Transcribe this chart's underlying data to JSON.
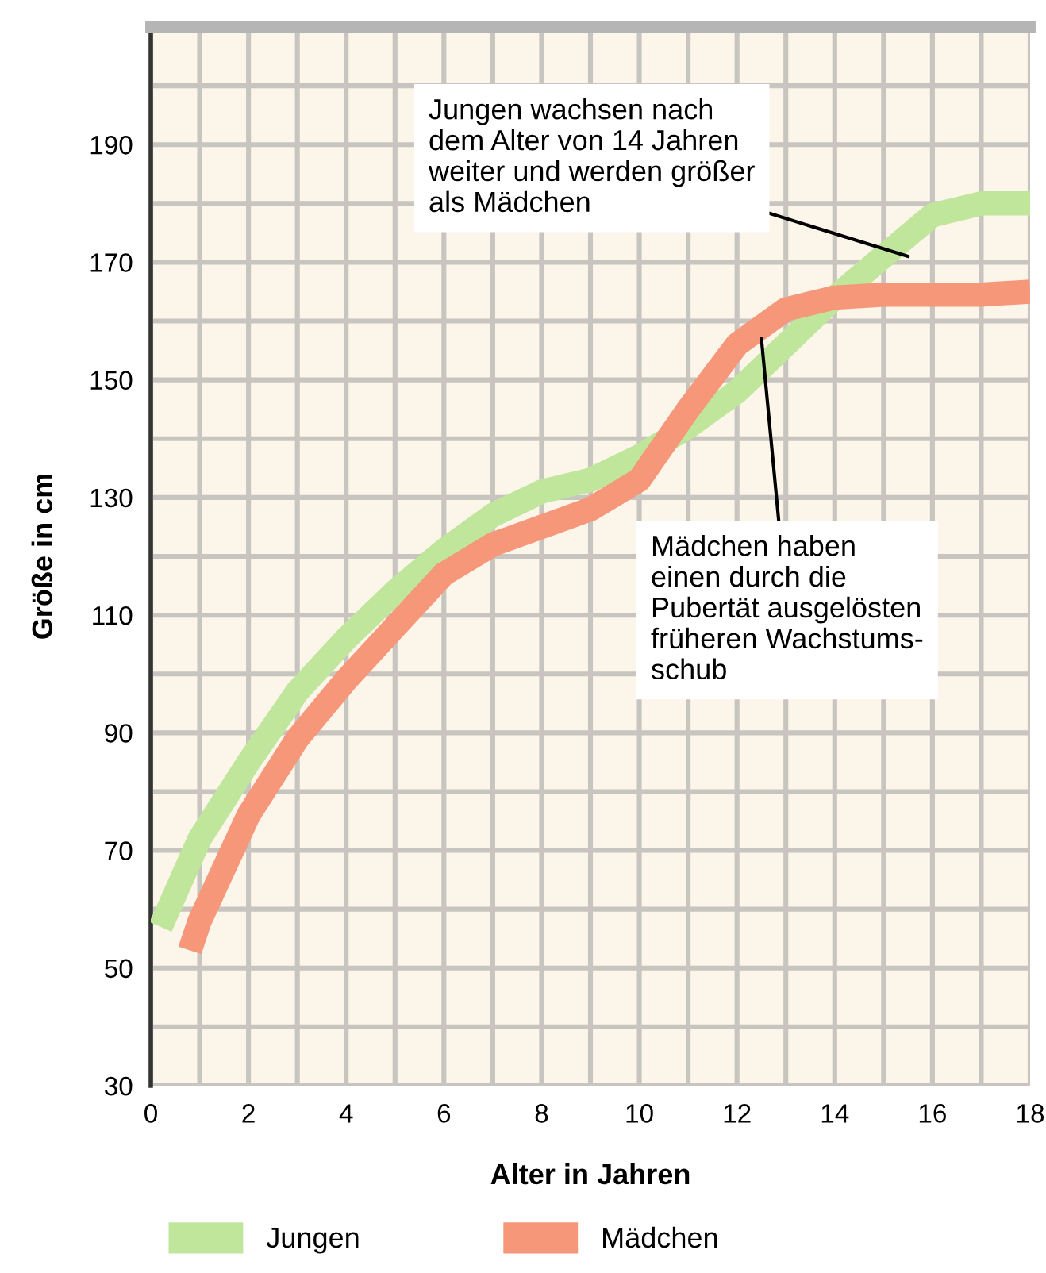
{
  "chart_data": {
    "type": "line",
    "xlabel": "Alter in Jahren",
    "ylabel": "Größe in cm",
    "series": [
      {
        "name": "Jungen",
        "color": "#bfe69a",
        "x": [
          0.2,
          1,
          2,
          3,
          4,
          5,
          6,
          7,
          8,
          9,
          10,
          11,
          12,
          13,
          14,
          15,
          16,
          17,
          18
        ],
        "values": [
          57,
          72,
          85,
          97,
          106,
          114,
          121,
          127,
          131,
          133,
          137,
          142,
          148,
          156,
          164,
          171,
          178,
          180,
          180
        ]
      },
      {
        "name": "Mädchen",
        "color": "#f7977a",
        "x": [
          0.8,
          1,
          2,
          3,
          4,
          5,
          6,
          7,
          8,
          9,
          10,
          11,
          12,
          13,
          14,
          15,
          16,
          17,
          18
        ],
        "values": [
          53,
          58,
          76,
          89,
          99,
          108,
          117,
          122,
          125,
          128,
          133,
          145,
          156,
          162,
          164,
          164.5,
          164.5,
          164.5,
          165
        ]
      }
    ],
    "xlim": [
      0,
      18
    ],
    "xticks": [
      0,
      {
        "value": 1,
        "label": null
      },
      2,
      {
        "value": 3,
        "label": null
      },
      4,
      {
        "value": 5,
        "label": null
      },
      6,
      {
        "value": 7,
        "label": null
      },
      8,
      {
        "value": 9,
        "label": null
      },
      10,
      {
        "value": 11,
        "label": null
      },
      12,
      {
        "value": 13,
        "label": null
      },
      14,
      {
        "value": 15,
        "label": null
      },
      16,
      {
        "value": 17,
        "label": null
      },
      18
    ],
    "ylim": [
      30,
      210
    ],
    "yticks": [
      30,
      {
        "value": 40,
        "label": null
      },
      50,
      {
        "value": 60,
        "label": null
      },
      70,
      {
        "value": 80,
        "label": null
      },
      90,
      {
        "value": 100,
        "label": null
      },
      110,
      {
        "value": 120,
        "label": null
      },
      130,
      {
        "value": 140,
        "label": null
      },
      150,
      {
        "value": 160,
        "label": null
      },
      170,
      {
        "value": 180,
        "label": null
      },
      190,
      {
        "value": 200,
        "label": null
      }
    ],
    "grid": true,
    "legend": "bottom",
    "annotations": [
      {
        "text": "Jungen wachsen nach\ndem Alter von 14 Jahren\nweiter und werden größer\nals Mädchen",
        "x": 15.5,
        "y": 171
      },
      {
        "text": "Mädchen haben\neinen durch die\nPubertät ausgelösten\nfrüheren Wachstums-\nschub",
        "x": 12.5,
        "y": 157
      }
    ]
  }
}
